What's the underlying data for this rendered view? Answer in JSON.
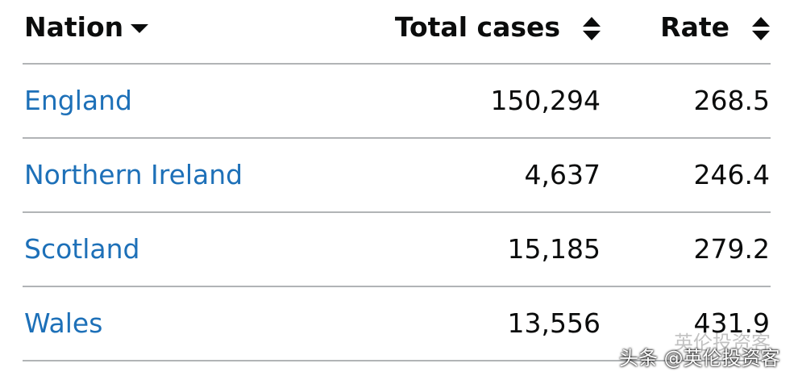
{
  "table": {
    "columns": [
      "Nation",
      "Total cases",
      "Rate"
    ],
    "rows": [
      [
        "England",
        "150,294",
        "268.5"
      ],
      [
        "Northern Ireland",
        "4,637",
        "246.4"
      ],
      [
        "Scotland",
        "15,185",
        "279.2"
      ],
      [
        "Wales",
        "13,556",
        "431.9"
      ]
    ]
  },
  "watermark": {
    "faded": "英伦投资客",
    "main": "头条 @英伦投资客"
  }
}
